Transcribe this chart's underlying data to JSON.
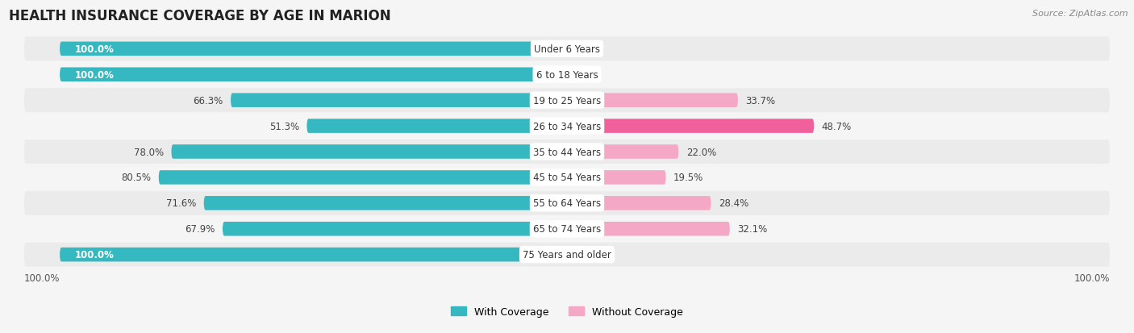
{
  "title": "HEALTH INSURANCE COVERAGE BY AGE IN MARION",
  "source": "Source: ZipAtlas.com",
  "categories": [
    "Under 6 Years",
    "6 to 18 Years",
    "19 to 25 Years",
    "26 to 34 Years",
    "35 to 44 Years",
    "45 to 54 Years",
    "55 to 64 Years",
    "65 to 74 Years",
    "75 Years and older"
  ],
  "with_coverage": [
    100.0,
    100.0,
    66.3,
    51.3,
    78.0,
    80.5,
    71.6,
    67.9,
    100.0
  ],
  "without_coverage": [
    0.0,
    0.0,
    33.7,
    48.7,
    22.0,
    19.5,
    28.4,
    32.1,
    0.0
  ],
  "color_with": "#35b8c0",
  "color_without_dark": "#f0609a",
  "color_without_light": "#f5a8c5",
  "bg_color": "#f5f5f5",
  "row_bg_alt": "#ebebeb",
  "title_fontsize": 12,
  "label_fontsize": 8.5,
  "bar_height": 0.55,
  "x_axis_label_left": "100.0%",
  "x_axis_label_right": "100.0%"
}
